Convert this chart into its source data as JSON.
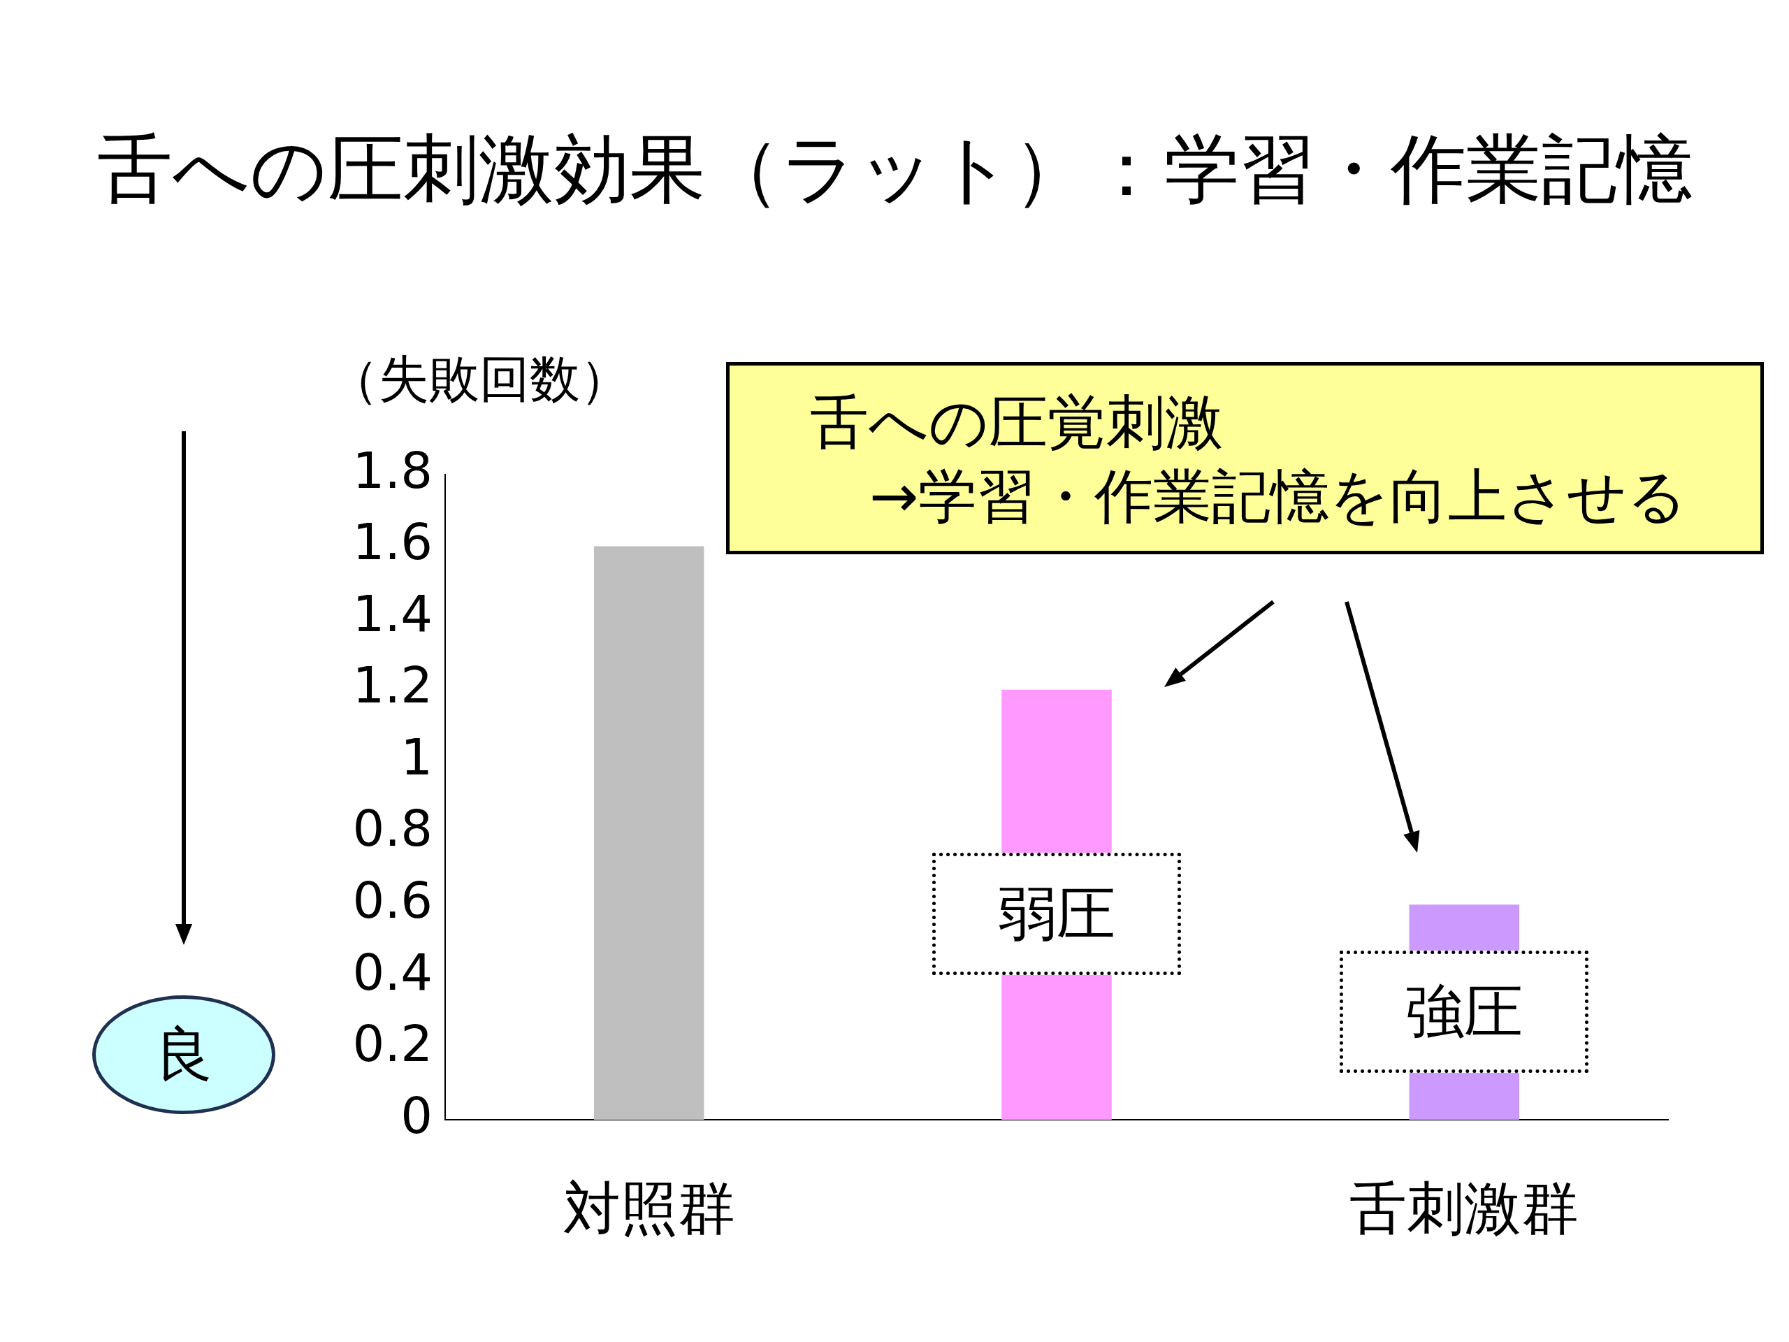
{
  "chart_data": {
    "type": "bar",
    "title": "舌への圧刺激効果（ラット）：学習・作業記憶",
    "ylabel": "（失敗回数）",
    "categories": [
      "対照群",
      null,
      "舌刺激群"
    ],
    "values": [
      1.6,
      1.2,
      0.6
    ],
    "colors": [
      "#bfbfbf",
      "#ff99ff",
      "#cc99ff"
    ],
    "ylim": [
      0,
      1.8
    ],
    "yticks": [
      0,
      0.2,
      0.4,
      0.6,
      0.8,
      1,
      1.2,
      1.4,
      1.6,
      1.8
    ],
    "annotations": [
      "舌への圧覚刺激\n→学習・作業記憶を向上させる",
      "弱圧",
      "強圧",
      "良"
    ]
  }
}
